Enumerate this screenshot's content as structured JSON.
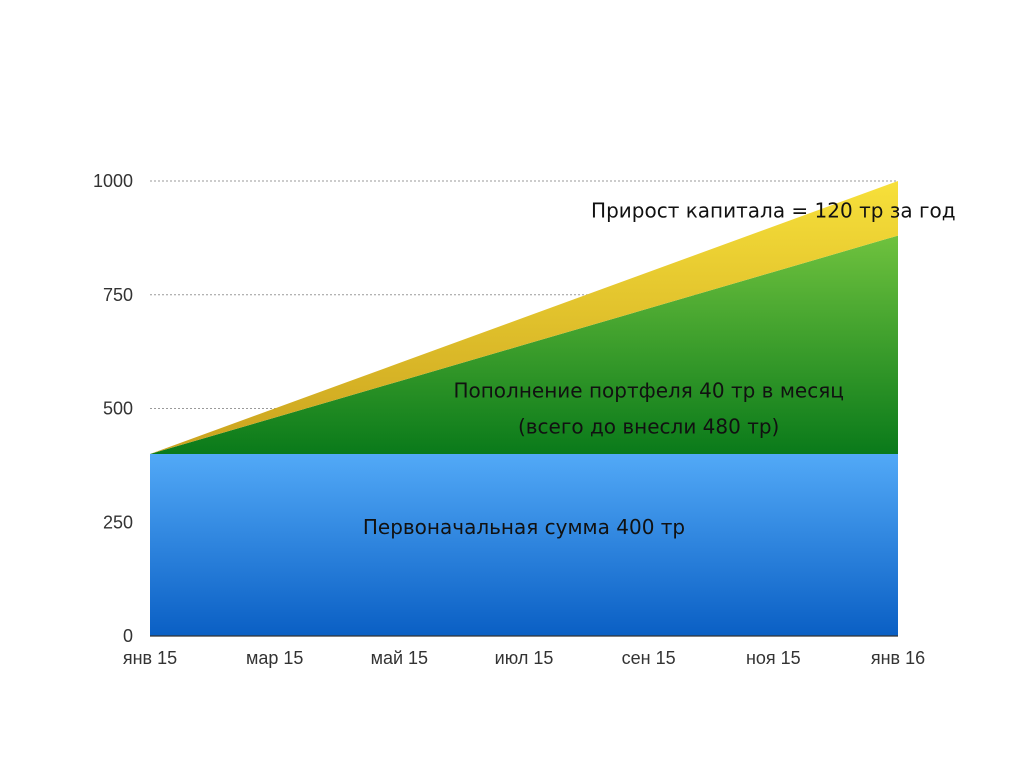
{
  "chart_data": {
    "type": "area",
    "stacked": true,
    "x": [
      "янв 15",
      "мар 15",
      "май 15",
      "июл 15",
      "сен 15",
      "ноя 15",
      "янв 16"
    ],
    "series": [
      {
        "values": [
          400,
          400,
          400,
          400,
          400,
          400,
          400
        ],
        "color": "#2f86e8",
        "gradient": [
          "#52a9f7",
          "#0a5fc4"
        ]
      },
      {
        "values": [
          0,
          80,
          160,
          240,
          320,
          400,
          480
        ],
        "color": "#3a9a2a",
        "gradient": [
          "#6fc23e",
          "#0a7a1a"
        ]
      },
      {
        "values": [
          0,
          20,
          40,
          60,
          80,
          100,
          120
        ],
        "color": "#e8c61c",
        "gradient": [
          "#f7e03a",
          "#caa21e"
        ]
      }
    ],
    "yticks": [
      0,
      250,
      500,
      750,
      1000
    ],
    "ylim": [
      0,
      1000
    ],
    "grid": true,
    "annotations": [
      {
        "text": "Первоначальная сумма 400 тр",
        "x": "июл 15",
        "y": 240
      },
      {
        "text": "Пополнение портфеля 40 тр в месяц",
        "x": "сен 15",
        "y": 540
      },
      {
        "text": "(всего до внесли 480 тр)",
        "x": "сен 15",
        "y": 460
      },
      {
        "text": "Прирост капитала = 120 тр за год",
        "x": "ноя 15",
        "y": 935
      }
    ]
  }
}
